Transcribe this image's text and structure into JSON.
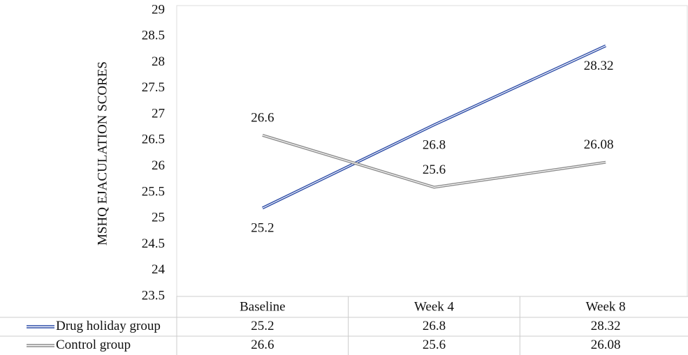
{
  "chart_data": {
    "type": "line",
    "y_axis_label": "MSHQ EJACULATION SCORES",
    "categories": [
      "Baseline",
      "Week 4",
      "Week 8"
    ],
    "series": [
      {
        "name": "Drug holiday group",
        "color": "#2f4ea8",
        "values": [
          25.2,
          26.8,
          28.32
        ]
      },
      {
        "name": "Control group",
        "color": "#8c8c8c",
        "values": [
          26.6,
          25.6,
          26.08
        ]
      }
    ],
    "ylim": [
      23.5,
      29
    ],
    "yticks": [
      23.5,
      24,
      24.5,
      25,
      25.5,
      26,
      26.5,
      27,
      27.5,
      28,
      28.5,
      29
    ],
    "grid": false,
    "data_table": true
  }
}
